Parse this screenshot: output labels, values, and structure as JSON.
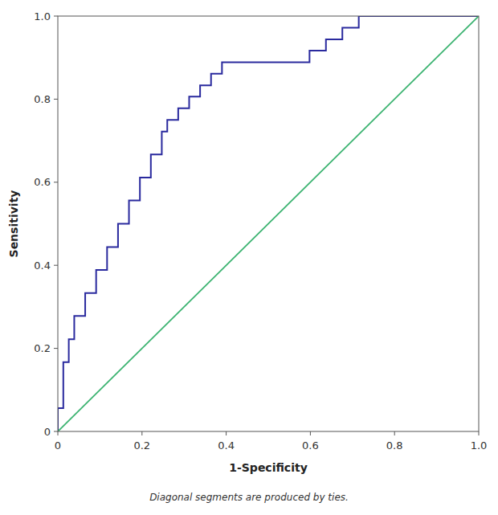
{
  "chart_data": {
    "type": "line",
    "xlabel": "1-Specificity",
    "ylabel": "Sensitivity",
    "annotations": [
      "Diagonal segments are produced by ties."
    ],
    "series": [
      {
        "color": "#2a2a9e",
        "x": [
          0.0,
          0.0,
          0.013,
          0.013,
          0.026,
          0.026,
          0.039,
          0.039,
          0.065,
          0.065,
          0.091,
          0.091,
          0.117,
          0.117,
          0.143,
          0.143,
          0.169,
          0.169,
          0.195,
          0.195,
          0.221,
          0.221,
          0.247,
          0.247,
          0.26,
          0.26,
          0.286,
          0.286,
          0.312,
          0.312,
          0.338,
          0.338,
          0.364,
          0.364,
          0.39,
          0.39,
          0.416,
          0.416,
          0.442,
          0.442,
          0.468,
          0.468,
          0.494,
          0.494,
          0.52,
          0.52,
          0.546,
          0.546,
          0.572,
          0.572,
          0.598,
          0.598,
          0.637,
          0.637,
          0.676,
          0.676,
          0.715,
          0.715,
          0.754,
          0.754,
          0.78,
          0.78,
          1.0,
          1.0
        ],
        "values": [
          0.0,
          0.056,
          0.056,
          0.167,
          0.167,
          0.222,
          0.222,
          0.278,
          0.278,
          0.333,
          0.333,
          0.389,
          0.389,
          0.444,
          0.444,
          0.5,
          0.5,
          0.556,
          0.556,
          0.611,
          0.611,
          0.667,
          0.667,
          0.722,
          0.722,
          0.75,
          0.75,
          0.778,
          0.778,
          0.806,
          0.806,
          0.833,
          0.833,
          0.861,
          0.861,
          0.889,
          0.889,
          0.889,
          0.889,
          0.889,
          0.889,
          0.889,
          0.889,
          0.889,
          0.889,
          0.889,
          0.889,
          0.889,
          0.889,
          0.889,
          0.889,
          0.917,
          0.917,
          0.944,
          0.944,
          0.972,
          0.972,
          1.0,
          1.0,
          1.0,
          1.0,
          1.0,
          1.0,
          1.0
        ]
      },
      {
        "color": "#3cb371",
        "x": [
          0.0,
          1.0
        ],
        "values": [
          0.0,
          1.0
        ]
      }
    ],
    "xlim": [
      0.0,
      1.0
    ],
    "ylim": [
      0.0,
      1.0
    ],
    "xticks": [
      0,
      0.2,
      0.4,
      0.6,
      0.8,
      {
        "value": 1.0,
        "label": "1.0"
      }
    ],
    "yticks": [
      0,
      0.2,
      0.4,
      0.6,
      0.8,
      {
        "value": 1.0,
        "label": "1.0"
      }
    ],
    "grid": false
  }
}
